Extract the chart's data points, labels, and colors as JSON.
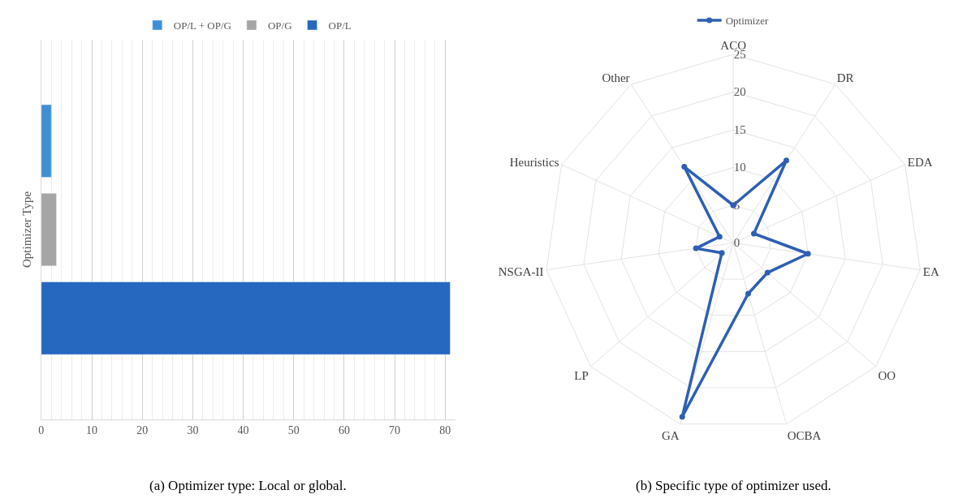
{
  "chart_data": [
    {
      "type": "bar",
      "orientation": "horizontal",
      "ylabel": "Optimizer Type",
      "categories": [
        null
      ],
      "series": [
        {
          "name": "OP/L + OP/G",
          "color": "#3e8fd6",
          "values": [
            2
          ]
        },
        {
          "name": "OP/G",
          "color": "#a5a5a5",
          "values": [
            3
          ]
        },
        {
          "name": "OP/L",
          "color": "#2667c0",
          "values": [
            81
          ]
        }
      ],
      "xlim": [
        0,
        82
      ],
      "xticks": [
        0,
        10,
        20,
        30,
        40,
        50,
        60,
        70,
        80
      ],
      "grid": "x",
      "legend": "top",
      "annotations": [
        "(a) Optimizer type: Local or global."
      ]
    },
    {
      "type": "radar",
      "categories": [
        "ACO",
        "DR",
        "EDA",
        "EA",
        "OO",
        "OCBA",
        "GA",
        "LP",
        "NSGA-II",
        "Heuristics",
        "Other"
      ],
      "series": [
        {
          "name": "Optimizer",
          "color": "#2e5fb4",
          "values": [
            5,
            13,
            3,
            10,
            6,
            7,
            24,
            2,
            5,
            2,
            12
          ]
        }
      ],
      "ylim": [
        0,
        25
      ],
      "yticks": [
        0,
        5,
        10,
        15,
        20,
        25
      ],
      "grid": true,
      "marker": "circle",
      "line_style": "solid",
      "legend": "top",
      "annotations": [
        "(b) Specific type of optimizer used."
      ]
    }
  ]
}
